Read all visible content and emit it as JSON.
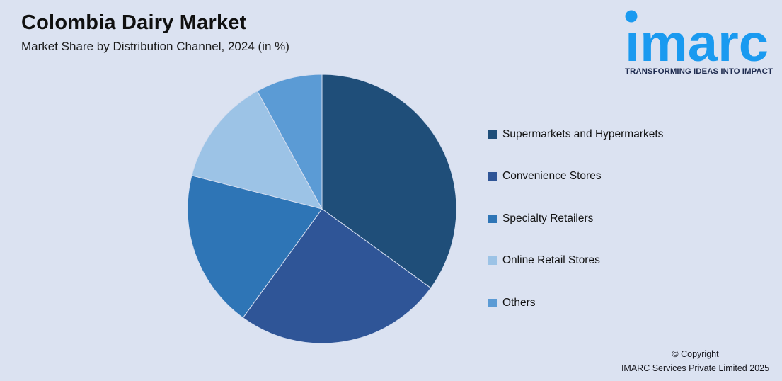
{
  "header": {
    "title": "Colombia Dairy Market",
    "subtitle": "Market Share by Distribution Channel, 2024 (in %)"
  },
  "logo": {
    "brand": "imarc",
    "wordmark_display": "ımarc",
    "tagline": "TRANSFORMING IDEAS INTO IMPACT",
    "brand_color": "#1A9AF0",
    "tagline_color": "#1E2B4F"
  },
  "chart_data": {
    "type": "pie",
    "title": "Colombia Dairy Market",
    "subtitle": "Market Share by Distribution Channel, 2024 (in %)",
    "unit": "%",
    "start_angle_deg": 0,
    "direction": "clockwise",
    "legend_position": "right",
    "labels": [
      "Supermarkets and Hypermarkets",
      "Convenience Stores",
      "Specialty Retailers",
      "Online Retail Stores",
      "Others"
    ],
    "values": [
      35,
      25,
      19,
      13,
      8
    ],
    "colors": [
      "#1F4E79",
      "#2F5597",
      "#2E75B6",
      "#9CC3E6",
      "#5B9BD5"
    ],
    "slice_divider_color": "#D4DDEF",
    "background_color": "#DBE2F1"
  },
  "footer": {
    "copyright_line1": "© Copyright",
    "copyright_line2": "IMARC Services Private Limited 2025"
  }
}
